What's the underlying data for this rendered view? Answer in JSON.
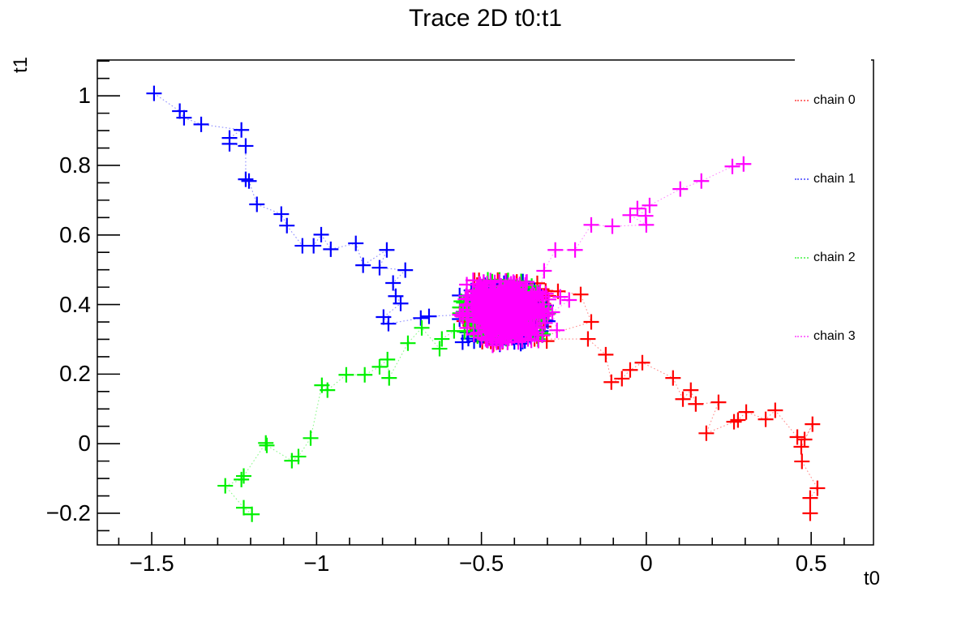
{
  "window": {
    "background": "#ffffff"
  },
  "chart_data": {
    "type": "scatter",
    "title": "Trace 2D t0:t1",
    "xlabel": "t0",
    "ylabel": "t1",
    "xlim": [
      -1.665,
      0.689
    ],
    "ylim": [
      -0.291,
      1.103
    ],
    "grid": false,
    "frame_color": "#000000",
    "x_ticks": {
      "values": [
        -1.5,
        -1,
        -0.5,
        0,
        0.5
      ],
      "labels": [
        "−1.5",
        "−1",
        "−0.5",
        "0",
        "0.5"
      ],
      "minor_step": 0.1
    },
    "y_ticks": {
      "values": [
        -0.2,
        0,
        0.2,
        0.4,
        0.6,
        0.8,
        1
      ],
      "labels": [
        "−0.2",
        "0",
        "0.2",
        "0.4",
        "0.6",
        "0.8",
        "1"
      ],
      "minor_step": 0.05
    },
    "legend": {
      "position": "top-right",
      "entries": [
        {
          "label": "chain 0",
          "color": "#ff0000",
          "marker": "dotted-line"
        },
        {
          "label": "chain 1",
          "color": "#0000ff",
          "marker": "dotted-line"
        },
        {
          "label": "chain 2",
          "color": "#00f000",
          "marker": "dotted-line"
        },
        {
          "label": "chain 3",
          "color": "#ff00ff",
          "marker": "dotted-line"
        }
      ]
    },
    "cluster": {
      "center": [
        -0.431,
        0.377
      ],
      "sigma": [
        0.059,
        0.041
      ],
      "clip_sigma": 2.3
    },
    "series": [
      {
        "name": "chain 0",
        "color": "#ff0000",
        "marker": "cross",
        "line_style": "dotted",
        "cluster_n": 300,
        "seed": 11,
        "trail": [
          [
            0.497,
            -0.2
          ],
          [
            0.497,
            -0.156
          ],
          [
            0.519,
            -0.128
          ],
          [
            0.472,
            -0.051
          ],
          [
            0.47,
            -0.009
          ],
          [
            0.504,
            0.056
          ],
          [
            0.48,
            0.012
          ],
          [
            0.458,
            0.019
          ],
          [
            0.391,
            0.096
          ],
          [
            0.362,
            0.07
          ],
          [
            0.303,
            0.091
          ],
          [
            0.278,
            0.068
          ],
          [
            0.266,
            0.063
          ],
          [
            0.182,
            0.03
          ],
          [
            0.219,
            0.119
          ],
          [
            0.15,
            0.114
          ],
          [
            0.135,
            0.154
          ],
          [
            0.111,
            0.128
          ],
          [
            0.081,
            0.189
          ],
          [
            -0.012,
            0.233
          ],
          [
            -0.049,
            0.212
          ],
          [
            -0.074,
            0.187
          ],
          [
            -0.106,
            0.177
          ],
          [
            -0.123,
            0.256
          ],
          [
            -0.177,
            0.301
          ],
          [
            -0.339,
            0.301
          ],
          [
            -0.167,
            0.35
          ],
          [
            -0.199,
            0.429
          ],
          [
            -0.268,
            0.438
          ],
          [
            -0.325,
            0.431
          ]
        ]
      },
      {
        "name": "chain 1",
        "color": "#0000ff",
        "marker": "cross",
        "line_style": "dotted",
        "cluster_n": 300,
        "seed": 22,
        "trail": [
          [
            -1.493,
            1.007
          ],
          [
            -1.415,
            0.956
          ],
          [
            -1.402,
            0.937
          ],
          [
            -1.35,
            0.918
          ],
          [
            -1.228,
            0.902
          ],
          [
            -1.264,
            0.879
          ],
          [
            -1.264,
            0.862
          ],
          [
            -1.215,
            0.856
          ],
          [
            -1.215,
            0.76
          ],
          [
            -1.205,
            0.755
          ],
          [
            -1.181,
            0.688
          ],
          [
            -1.107,
            0.66
          ],
          [
            -1.09,
            0.627
          ],
          [
            -1.043,
            0.569
          ],
          [
            -1.009,
            0.569
          ],
          [
            -0.986,
            0.601
          ],
          [
            -0.957,
            0.559
          ],
          [
            -0.881,
            0.576
          ],
          [
            -0.859,
            0.513
          ],
          [
            -0.787,
            0.557
          ],
          [
            -0.809,
            0.506
          ],
          [
            -0.731,
            0.499
          ],
          [
            -0.768,
            0.462
          ],
          [
            -0.76,
            0.424
          ],
          [
            -0.745,
            0.403
          ],
          [
            -0.797,
            0.364
          ],
          [
            -0.782,
            0.345
          ],
          [
            -0.684,
            0.361
          ],
          [
            -0.659,
            0.366
          ]
        ]
      },
      {
        "name": "chain 2",
        "color": "#00f000",
        "marker": "cross",
        "line_style": "dotted",
        "cluster_n": 300,
        "seed": 33,
        "trail": [
          [
            -1.196,
            -0.203
          ],
          [
            -1.221,
            -0.184
          ],
          [
            -1.277,
            -0.121
          ],
          [
            -1.228,
            -0.103
          ],
          [
            -1.221,
            -0.093
          ],
          [
            -1.154,
            0.002
          ],
          [
            -1.151,
            -0.005
          ],
          [
            -1.075,
            -0.049
          ],
          [
            -1.055,
            -0.037
          ],
          [
            -1.018,
            0.016
          ],
          [
            -0.984,
            0.168
          ],
          [
            -0.967,
            0.154
          ],
          [
            -0.91,
            0.198
          ],
          [
            -0.854,
            0.198
          ],
          [
            -0.809,
            0.221
          ],
          [
            -0.785,
            0.242
          ],
          [
            -0.78,
            0.189
          ],
          [
            -0.723,
            0.289
          ],
          [
            -0.681,
            0.333
          ],
          [
            -0.627,
            0.273
          ],
          [
            -0.62,
            0.301
          ],
          [
            -0.583,
            0.324
          ],
          [
            -0.551,
            0.322
          ]
        ]
      },
      {
        "name": "chain 3",
        "color": "#ff00ff",
        "marker": "cross",
        "line_style": "dotted",
        "cluster_n": 560,
        "seed": 44,
        "trail": [
          [
            0.295,
            0.804
          ],
          [
            0.261,
            0.797
          ],
          [
            0.167,
            0.755
          ],
          [
            0.103,
            0.732
          ],
          [
            0.01,
            0.685
          ],
          [
            -0.027,
            0.676
          ],
          [
            -0.002,
            0.655
          ],
          [
            -0.049,
            0.657
          ],
          [
            0.0,
            0.629
          ],
          [
            -0.103,
            0.625
          ],
          [
            -0.167,
            0.629
          ],
          [
            -0.216,
            0.557
          ],
          [
            -0.276,
            0.557
          ],
          [
            -0.31,
            0.497
          ],
          [
            -0.325,
            0.429
          ],
          [
            -0.261,
            0.422
          ],
          [
            -0.234,
            0.413
          ],
          [
            -0.285,
            0.378
          ],
          [
            -0.271,
            0.326
          ]
        ]
      }
    ]
  }
}
